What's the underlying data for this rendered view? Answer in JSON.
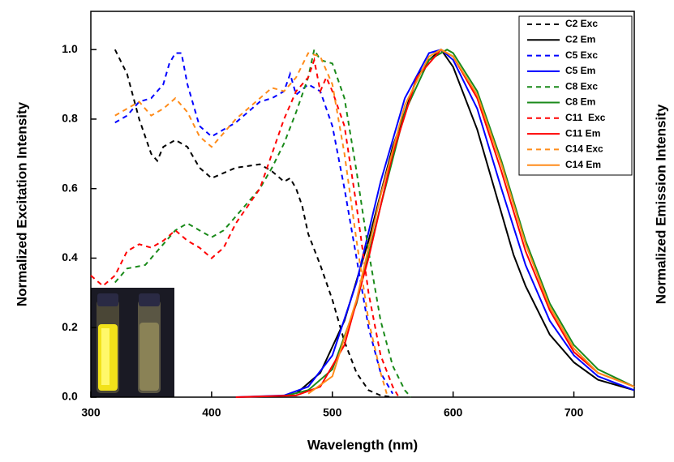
{
  "chart_data": {
    "type": "line",
    "xlabel": "Wavelength (nm)",
    "ylabel": "Normalized Excitation Intensity",
    "y2label": "Normalized Emission Intensity",
    "xlim": [
      300,
      750
    ],
    "ylim": [
      0,
      1.11
    ],
    "y2lim": [
      0,
      1.11
    ],
    "xticks": [
      300,
      400,
      500,
      600,
      700
    ],
    "yticks": [
      {
        "value": 0,
        "label": "0.0"
      },
      0.2,
      0.4,
      0.6,
      0.8,
      {
        "value": 1,
        "label": "1.0"
      }
    ],
    "legend": "top-right",
    "series": [
      {
        "name": "C2 Exc",
        "color": "#000000",
        "style": "dashed",
        "x": [
          320,
          330,
          340,
          350,
          355,
          360,
          370,
          380,
          390,
          400,
          420,
          440,
          450,
          460,
          465,
          470,
          475,
          480,
          490,
          500,
          510,
          520,
          530,
          540,
          550
        ],
        "values": [
          1.0,
          0.93,
          0.8,
          0.7,
          0.68,
          0.72,
          0.74,
          0.72,
          0.66,
          0.63,
          0.66,
          0.67,
          0.65,
          0.62,
          0.63,
          0.6,
          0.55,
          0.47,
          0.38,
          0.28,
          0.16,
          0.07,
          0.02,
          0.005,
          0
        ]
      },
      {
        "name": "C2 Em",
        "color": "#000000",
        "style": "solid",
        "axis": "y2",
        "x": [
          470,
          490,
          510,
          530,
          550,
          570,
          580,
          590,
          600,
          620,
          640,
          650,
          660,
          680,
          700,
          720,
          750
        ],
        "values": [
          0.01,
          0.07,
          0.22,
          0.45,
          0.72,
          0.92,
          0.97,
          1.0,
          0.95,
          0.77,
          0.53,
          0.41,
          0.32,
          0.18,
          0.1,
          0.05,
          0.02
        ]
      },
      {
        "name": "C5 Exc",
        "color": "#0000ff",
        "style": "dashed",
        "x": [
          320,
          330,
          340,
          350,
          360,
          365,
          370,
          375,
          380,
          390,
          400,
          410,
          420,
          430,
          440,
          450,
          460,
          465,
          470,
          480,
          490,
          500,
          510,
          520,
          530,
          540,
          550
        ],
        "values": [
          0.79,
          0.81,
          0.85,
          0.86,
          0.9,
          0.96,
          0.99,
          0.99,
          0.9,
          0.78,
          0.75,
          0.77,
          0.79,
          0.82,
          0.85,
          0.86,
          0.88,
          0.93,
          0.87,
          0.9,
          0.88,
          0.78,
          0.6,
          0.4,
          0.2,
          0.07,
          0.01
        ]
      },
      {
        "name": "C5 Em",
        "color": "#0000ff",
        "style": "solid",
        "axis": "y2",
        "x": [
          420,
          460,
          480,
          500,
          520,
          540,
          560,
          580,
          590,
          600,
          620,
          640,
          660,
          680,
          700,
          720,
          750
        ],
        "values": [
          0,
          0.005,
          0.03,
          0.12,
          0.33,
          0.62,
          0.86,
          0.99,
          1.0,
          0.97,
          0.83,
          0.6,
          0.38,
          0.22,
          0.12,
          0.06,
          0.02
        ]
      },
      {
        "name": "C8 Exc",
        "color": "#1a8a1a",
        "style": "dashed",
        "x": [
          320,
          330,
          345,
          360,
          370,
          380,
          390,
          400,
          410,
          420,
          440,
          450,
          460,
          470,
          480,
          485,
          490,
          500,
          510,
          520,
          530,
          540,
          550,
          560,
          565
        ],
        "values": [
          0.33,
          0.37,
          0.38,
          0.44,
          0.48,
          0.5,
          0.48,
          0.46,
          0.48,
          0.52,
          0.6,
          0.66,
          0.73,
          0.82,
          0.92,
          1.0,
          0.97,
          0.96,
          0.86,
          0.65,
          0.42,
          0.22,
          0.09,
          0.02,
          0
        ]
      },
      {
        "name": "C8 Em",
        "color": "#1a8a1a",
        "style": "solid",
        "axis": "y2",
        "x": [
          460,
          480,
          500,
          520,
          540,
          560,
          580,
          595,
          600,
          620,
          640,
          660,
          680,
          700,
          720,
          750
        ],
        "values": [
          0.003,
          0.02,
          0.08,
          0.27,
          0.55,
          0.82,
          0.97,
          1.0,
          0.99,
          0.88,
          0.68,
          0.45,
          0.27,
          0.15,
          0.08,
          0.03
        ]
      },
      {
        "name": "C11  Exc",
        "color": "#ff0000",
        "style": "dashed",
        "x": [
          300,
          310,
          320,
          330,
          340,
          350,
          360,
          370,
          380,
          390,
          400,
          410,
          420,
          440,
          450,
          460,
          470,
          480,
          485,
          490,
          495,
          500,
          510,
          520,
          530,
          540,
          550,
          555
        ],
        "values": [
          0.35,
          0.32,
          0.35,
          0.42,
          0.44,
          0.43,
          0.45,
          0.48,
          0.45,
          0.43,
          0.4,
          0.43,
          0.5,
          0.6,
          0.7,
          0.8,
          0.88,
          0.92,
          0.97,
          0.88,
          0.92,
          0.88,
          0.78,
          0.55,
          0.3,
          0.12,
          0.03,
          0
        ]
      },
      {
        "name": "C11 Em",
        "color": "#ff0000",
        "style": "solid",
        "axis": "y2",
        "x": [
          420,
          470,
          490,
          510,
          530,
          550,
          570,
          590,
          600,
          620,
          640,
          660,
          680,
          700,
          720,
          750
        ],
        "values": [
          0,
          0.005,
          0.03,
          0.15,
          0.4,
          0.7,
          0.92,
          1.0,
          0.98,
          0.86,
          0.65,
          0.42,
          0.25,
          0.13,
          0.07,
          0.03
        ]
      },
      {
        "name": "C14 Exc",
        "color": "#ff8c1a",
        "style": "dashed",
        "x": [
          320,
          330,
          340,
          350,
          360,
          370,
          380,
          390,
          400,
          410,
          420,
          430,
          440,
          450,
          460,
          470,
          480,
          490,
          500,
          510,
          520,
          530,
          540,
          545
        ],
        "values": [
          0.81,
          0.83,
          0.85,
          0.81,
          0.83,
          0.86,
          0.82,
          0.75,
          0.72,
          0.76,
          0.8,
          0.83,
          0.86,
          0.89,
          0.88,
          0.92,
          0.99,
          0.98,
          0.9,
          0.7,
          0.45,
          0.22,
          0.07,
          0.01
        ]
      },
      {
        "name": "C14 Em",
        "color": "#ff8c1a",
        "style": "solid",
        "axis": "y2",
        "x": [
          480,
          500,
          520,
          540,
          560,
          580,
          590,
          600,
          620,
          640,
          660,
          680,
          700,
          720,
          750
        ],
        "values": [
          0.01,
          0.06,
          0.28,
          0.58,
          0.84,
          0.98,
          1.0,
          0.98,
          0.87,
          0.67,
          0.44,
          0.26,
          0.14,
          0.07,
          0.03
        ]
      }
    ]
  }
}
